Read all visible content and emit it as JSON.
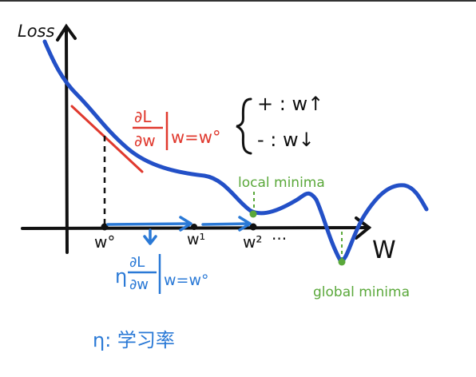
{
  "labels": {
    "y_axis": "Loss",
    "x_axis": "W",
    "grad_num": "∂L",
    "grad_den": "∂w",
    "grad_eval": "w=w°",
    "rule_plus": "+ :  w↑",
    "rule_minus": "- :  w↓",
    "local_minima": "local minima",
    "global_minima": "global minima",
    "w0": "w°",
    "w1": "w¹",
    "w2": "w²",
    "dots": "···",
    "eta": "η",
    "step_num": "∂L",
    "step_den": "∂w",
    "step_eval": "w=w°",
    "eta_def": "η: 学习率"
  },
  "colors": {
    "ink": "#111111",
    "curve": "#2350c7",
    "tangent": "#e0392e",
    "annotation_red": "#e0392e",
    "green": "#5aa83a",
    "blue_text": "#2a79d6"
  }
}
